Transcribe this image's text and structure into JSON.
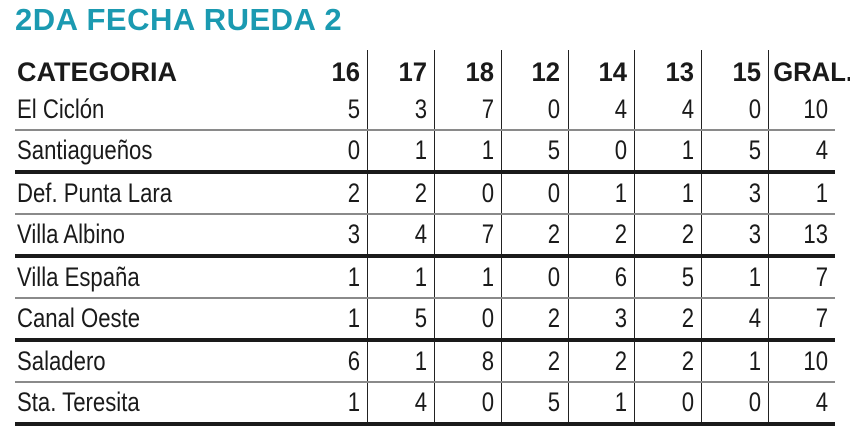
{
  "title": "2DA FECHA RUEDA 2",
  "accent_color": "#1b9ab1",
  "columns": [
    "CATEGORIA",
    "16",
    "17",
    "18",
    "12",
    "14",
    "13",
    "15",
    "GRAL."
  ],
  "rows": [
    {
      "name": "El Ciclón",
      "values": [
        "5",
        "3",
        "7",
        "0",
        "4",
        "4",
        "0",
        "10"
      ]
    },
    {
      "name": "Santiagueños",
      "values": [
        "0",
        "1",
        "1",
        "5",
        "0",
        "1",
        "5",
        "4"
      ]
    },
    {
      "name": "Def. Punta Lara",
      "values": [
        "2",
        "2",
        "0",
        "0",
        "1",
        "1",
        "3",
        "1"
      ]
    },
    {
      "name": "Villa Albino",
      "values": [
        "3",
        "4",
        "7",
        "2",
        "2",
        "2",
        "3",
        "13"
      ]
    },
    {
      "name": "Villa España",
      "values": [
        "1",
        "1",
        "1",
        "0",
        "6",
        "5",
        "1",
        "7"
      ]
    },
    {
      "name": "Canal Oeste",
      "values": [
        "1",
        "5",
        "0",
        "2",
        "3",
        "2",
        "4",
        "7"
      ]
    },
    {
      "name": "Saladero",
      "values": [
        "6",
        "1",
        "8",
        "2",
        "2",
        "2",
        "1",
        "10"
      ]
    },
    {
      "name": "Sta. Teresita",
      "values": [
        "1",
        "4",
        "0",
        "5",
        "1",
        "0",
        "0",
        "4"
      ]
    }
  ]
}
